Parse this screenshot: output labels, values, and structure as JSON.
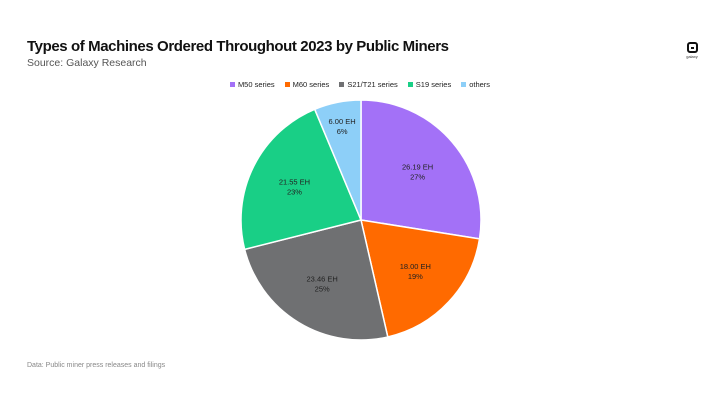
{
  "header": {
    "title": "Types of Machines Ordered Throughout 2023 by Public Miners",
    "subtitle": "Source: Galaxy Research",
    "logo_text": "galaxy"
  },
  "footnote": "Data: Public miner press releases and filings",
  "chart_data": {
    "type": "pie",
    "title": "Types of Machines Ordered Throughout 2023 by Public Miners",
    "legend_position": "top",
    "slices": [
      {
        "name": "M50 series",
        "value": 26.19,
        "value_label": "26.19 EH",
        "pct_label": "27%",
        "color": "#A371F7"
      },
      {
        "name": "M60 series",
        "value": 18.0,
        "value_label": "18.00 EH",
        "pct_label": "19%",
        "color": "#FF6A00"
      },
      {
        "name": "S21/T21 series",
        "value": 23.46,
        "value_label": "23.46 EH",
        "pct_label": "25%",
        "color": "#6F7072"
      },
      {
        "name": "S19 series",
        "value": 21.55,
        "value_label": "21.55 EH",
        "pct_label": "23%",
        "color": "#19CF86"
      },
      {
        "name": "others",
        "value": 6.0,
        "value_label": "6.00 EH",
        "pct_label": "6%",
        "color": "#8DCFF8"
      }
    ]
  }
}
